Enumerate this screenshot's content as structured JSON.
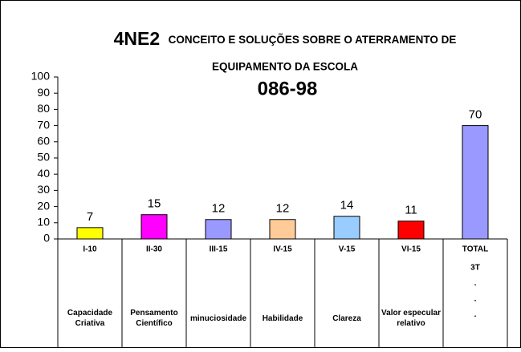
{
  "chart_data": {
    "type": "bar",
    "title_lines": [
      "4NE2",
      "CONCEITO E SOLUÇÕES SOBRE O ATERRAMENTO DE",
      "EQUIPAMENTO DA ESCOLA",
      "086-98"
    ],
    "categories": [
      "I-10",
      "II-30",
      "III-15",
      "IV-15",
      "V-15",
      "VI-15",
      "TOTAL"
    ],
    "details": [
      [
        "Capacidade Criativa"
      ],
      [
        "Pensamento Científico"
      ],
      [
        "minuciosidade"
      ],
      [
        "Habilidade"
      ],
      [
        "Clareza"
      ],
      [
        "Valor especular relativo"
      ],
      [
        "3T",
        ".",
        ".",
        "."
      ]
    ],
    "values": [
      7,
      15,
      12,
      12,
      14,
      11,
      70
    ],
    "colors": [
      "#ffff00",
      "#ff00ff",
      "#9999ff",
      "#ffcc99",
      "#99ccff",
      "#ff0000",
      "#9999ff"
    ],
    "ylim": [
      0,
      100
    ],
    "yticks": [
      0,
      10,
      20,
      30,
      40,
      50,
      60,
      70,
      80,
      90,
      100
    ],
    "grid": false
  }
}
